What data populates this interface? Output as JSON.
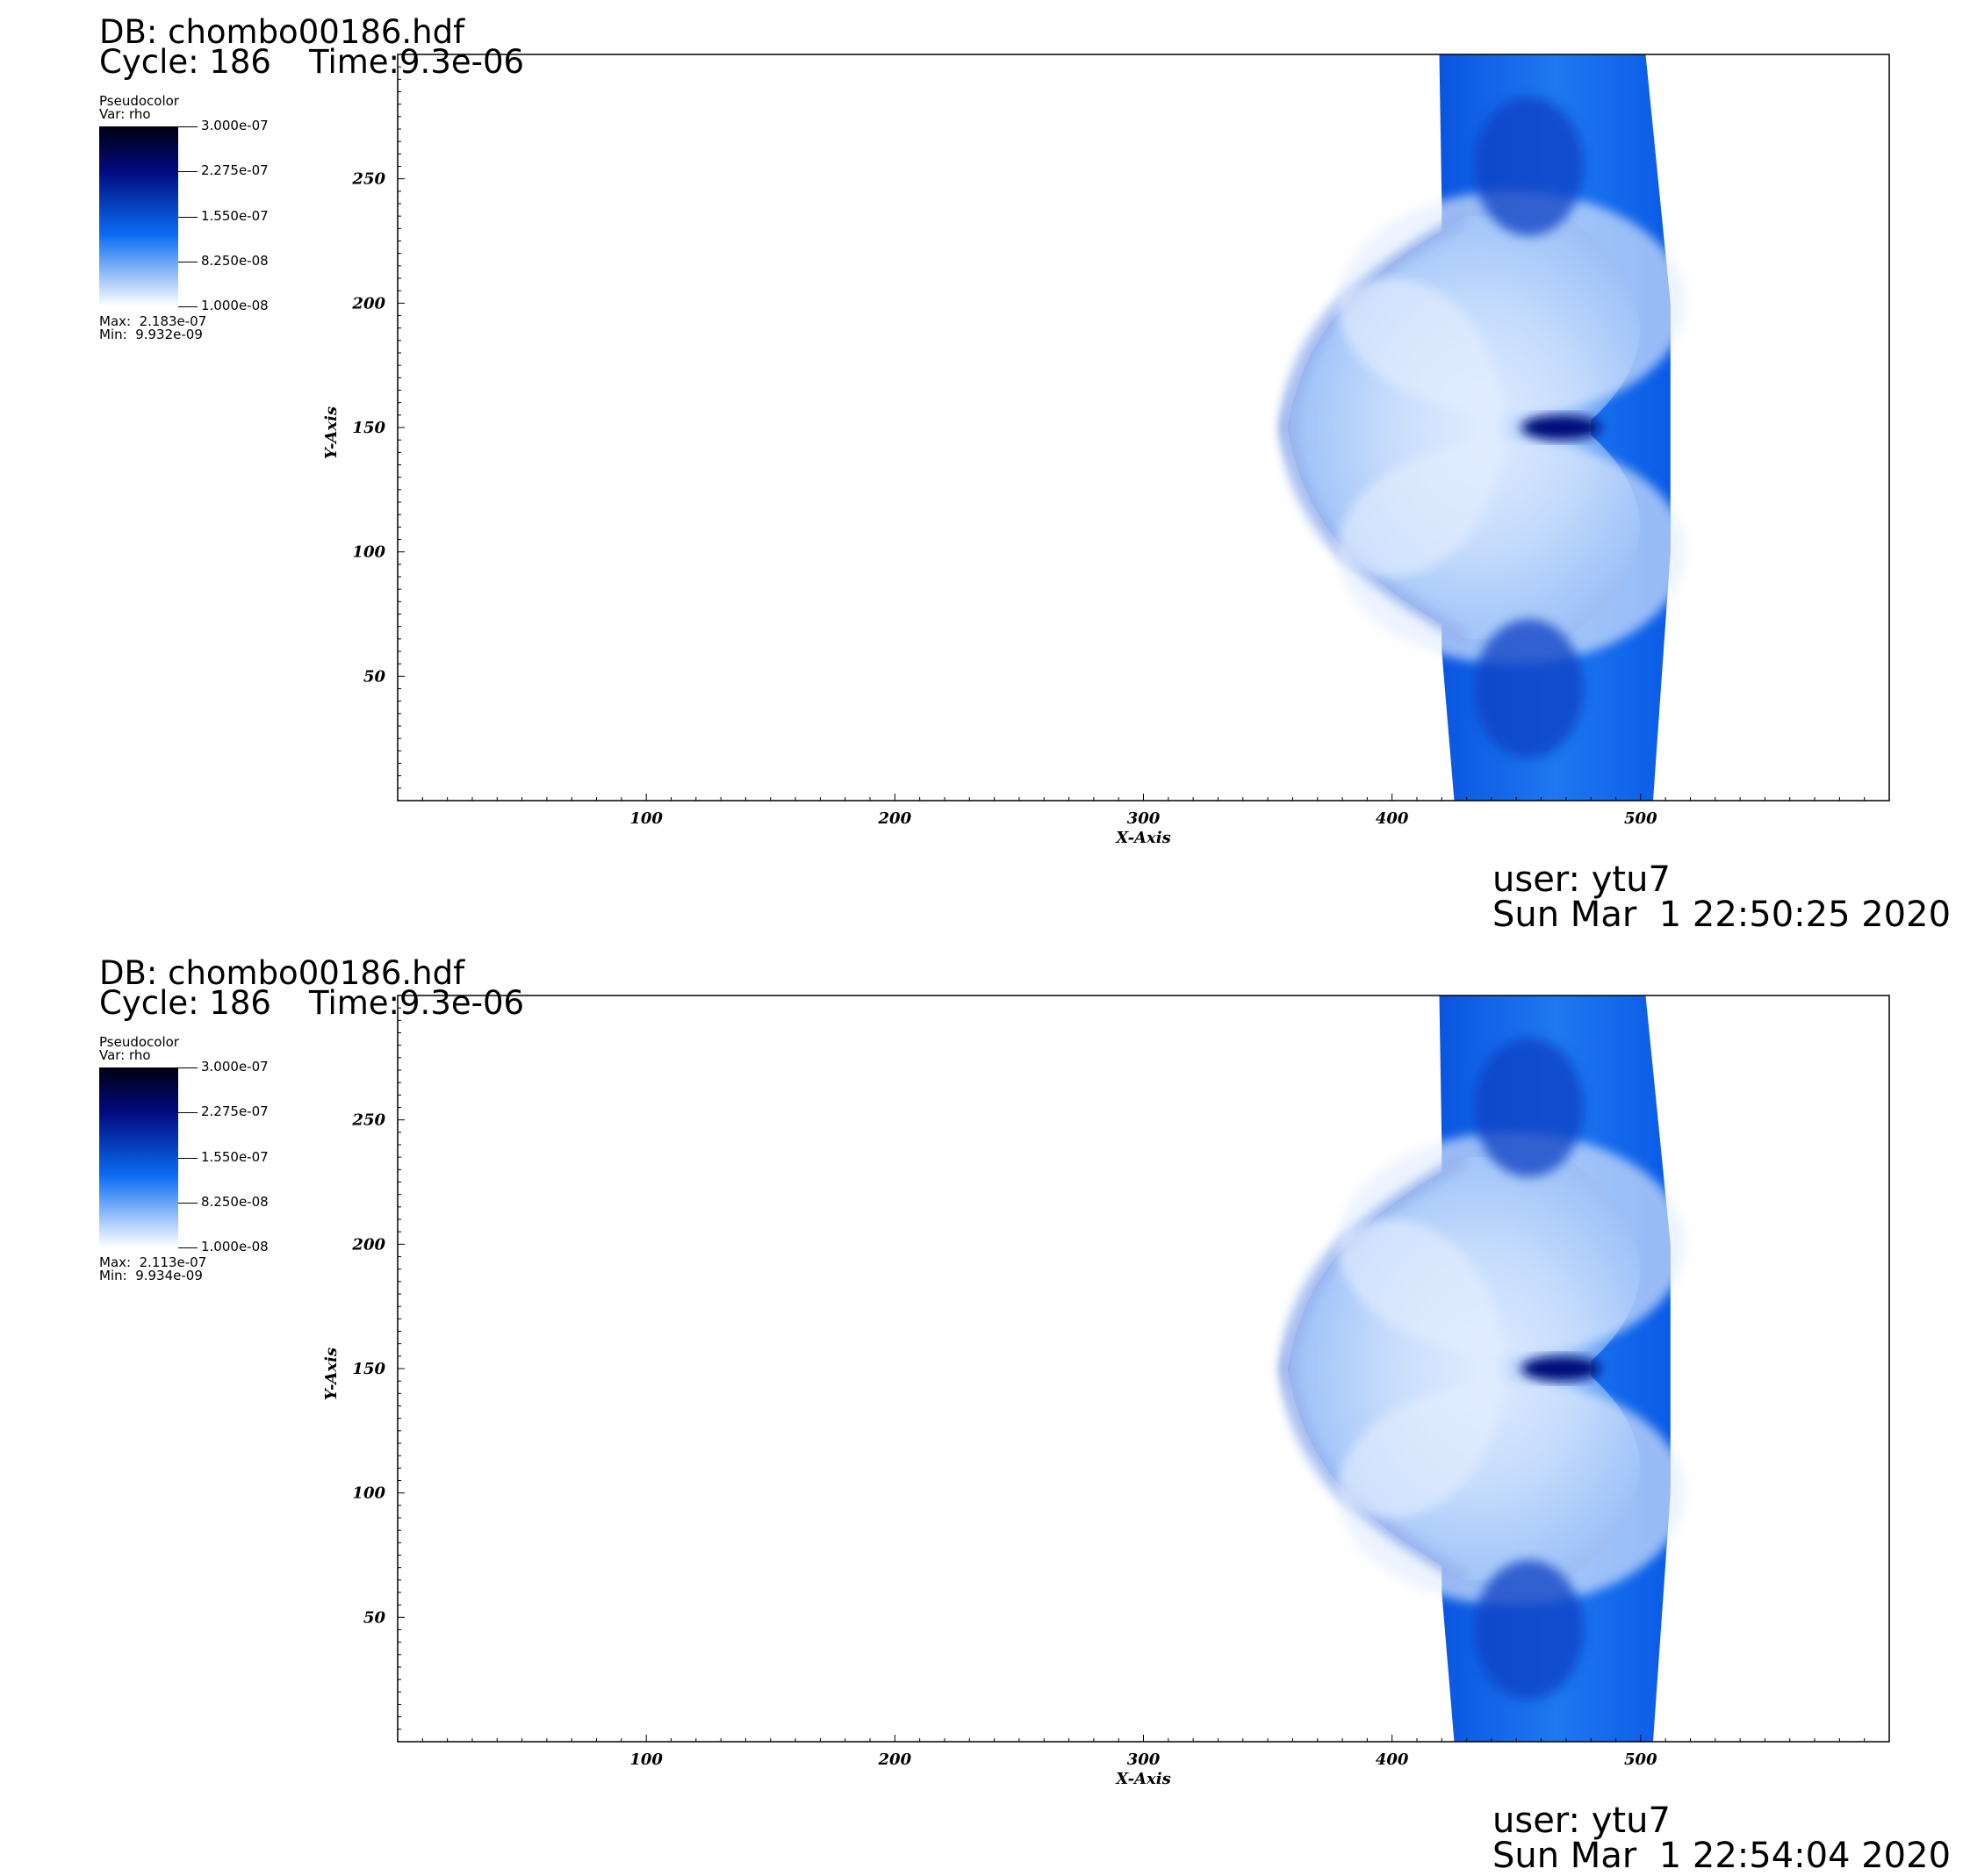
{
  "colors": {
    "colormap": [
      "#ffffff",
      "#0a6cf2",
      "#020a80",
      "#000012"
    ],
    "axis": "#000000",
    "background": "#ffffff"
  },
  "panels": [
    {
      "db_label": "DB: chombo00186.hdf",
      "cycle_label": "Cycle: 186",
      "time_label": "Time:9.3e-06",
      "legend": {
        "title": "Pseudocolor",
        "var": "Var: rho",
        "ticks": [
          "3.000e-07",
          "2.275e-07",
          "1.550e-07",
          "8.250e-08",
          "1.000e-08"
        ],
        "max": "Max:  2.183e-07",
        "min": "Min:  9.932e-09"
      },
      "user": "user: ytu7",
      "date": "Sun Mar  1 22:50:25 2020"
    },
    {
      "db_label": "DB: chombo00186.hdf",
      "cycle_label": "Cycle: 186",
      "time_label": "Time:9.3e-06",
      "legend": {
        "title": "Pseudocolor",
        "var": "Var: rho",
        "ticks": [
          "3.000e-07",
          "2.275e-07",
          "1.550e-07",
          "8.250e-08",
          "1.000e-08"
        ],
        "max": "Max:  2.113e-07",
        "min": "Min:  9.934e-09"
      },
      "user": "user: ytu7",
      "date": "Sun Mar  1 22:54:04 2020"
    }
  ],
  "chart_data": [
    {
      "type": "heatmap",
      "variable": "rho",
      "xlabel": "X-Axis",
      "ylabel": "Y-Axis",
      "xlim": [
        0,
        600
      ],
      "ylim": [
        0,
        300
      ],
      "xticks": [
        100,
        200,
        300,
        400,
        500
      ],
      "yticks": [
        50,
        100,
        150,
        200,
        250
      ],
      "colorbar_range": [
        1e-08,
        3e-07
      ],
      "data_max": 2.183e-07,
      "data_min": 9.932e-09
    },
    {
      "type": "heatmap",
      "variable": "rho",
      "xlabel": "X-Axis",
      "ylabel": "Y-Axis",
      "xlim": [
        0,
        600
      ],
      "ylim": [
        0,
        300
      ],
      "xticks": [
        100,
        200,
        300,
        400,
        500
      ],
      "yticks": [
        50,
        100,
        150,
        200,
        250
      ],
      "colorbar_range": [
        1e-08,
        3e-07
      ],
      "data_max": 2.113e-07,
      "data_min": 9.934e-09
    }
  ]
}
